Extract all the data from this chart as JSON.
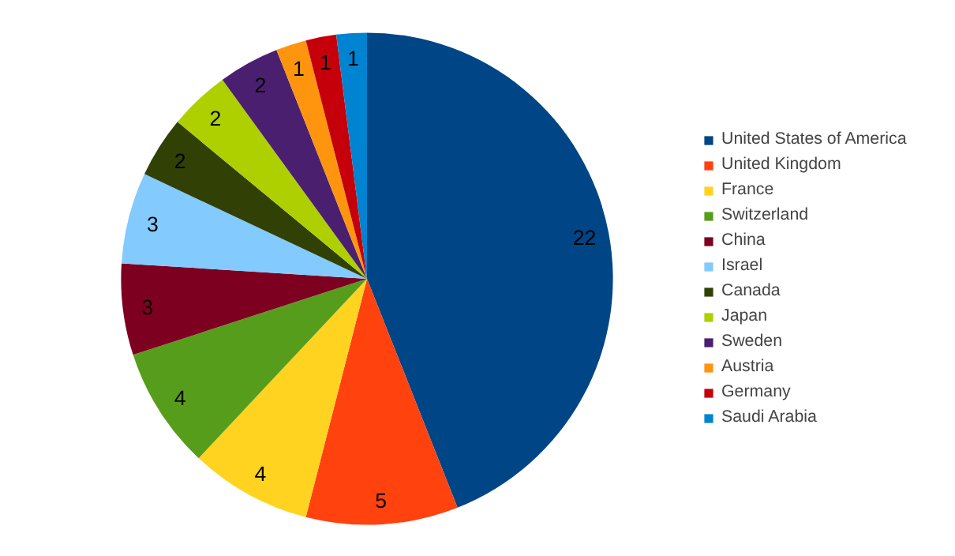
{
  "chart_data": {
    "type": "pie",
    "categories": [
      "United States of America",
      "United Kingdom",
      "France",
      "Switzerland",
      "China",
      "Israel",
      "Canada",
      "Japan",
      "Sweden",
      "Austria",
      "Germany",
      "Saudi Arabia"
    ],
    "values": [
      22,
      5,
      4,
      4,
      3,
      3,
      2,
      2,
      2,
      1,
      1,
      1
    ],
    "colors": [
      "#004586",
      "#ff420e",
      "#ffd320",
      "#579d1c",
      "#7e0021",
      "#83caff",
      "#314004",
      "#aecf00",
      "#4b1f6f",
      "#ff950e",
      "#c5000b",
      "#0084d1"
    ],
    "data_labels": true,
    "legend": "right"
  }
}
